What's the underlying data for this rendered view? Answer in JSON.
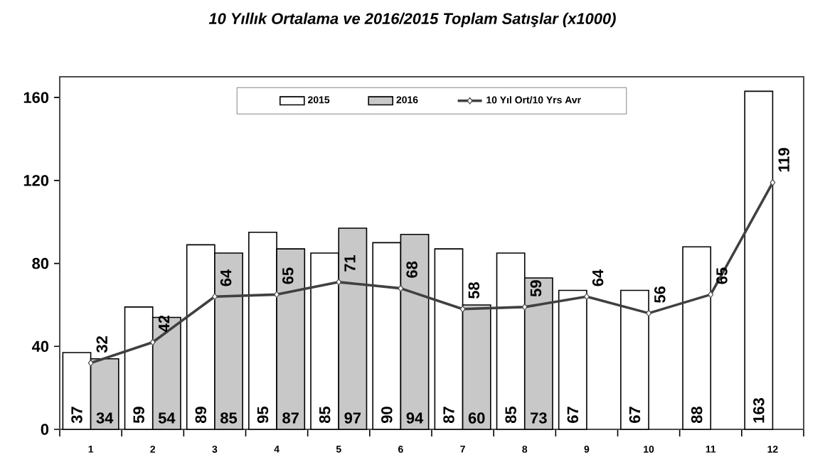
{
  "chart_data": {
    "type": "bar",
    "title": "10 Yıllık Ortalama ve 2016/2015 Toplam Satışlar (x1000)",
    "categories": [
      "1",
      "2",
      "3",
      "4",
      "5",
      "6",
      "7",
      "8",
      "9",
      "10",
      "11",
      "12"
    ],
    "series": [
      {
        "name": "2015",
        "color": "#ffffff",
        "values": [
          37,
          59,
          89,
          95,
          85,
          90,
          87,
          85,
          67,
          67,
          88,
          163
        ]
      },
      {
        "name": "2016",
        "color": "#c8c8c8",
        "values": [
          34,
          54,
          85,
          87,
          97,
          94,
          60,
          73,
          null,
          null,
          null,
          null
        ]
      },
      {
        "name": "10 Yıl Ort/10 Yrs Avr",
        "type": "line",
        "color": "#404040",
        "marker": "diamond",
        "values": [
          32,
          42,
          64,
          65,
          71,
          68,
          58,
          59,
          64,
          56,
          65,
          119
        ]
      }
    ],
    "ylim": [
      0,
      170
    ],
    "yticks": [
      0,
      40,
      80,
      120,
      160
    ],
    "grid": false,
    "legend": "top",
    "data_labels": true
  }
}
